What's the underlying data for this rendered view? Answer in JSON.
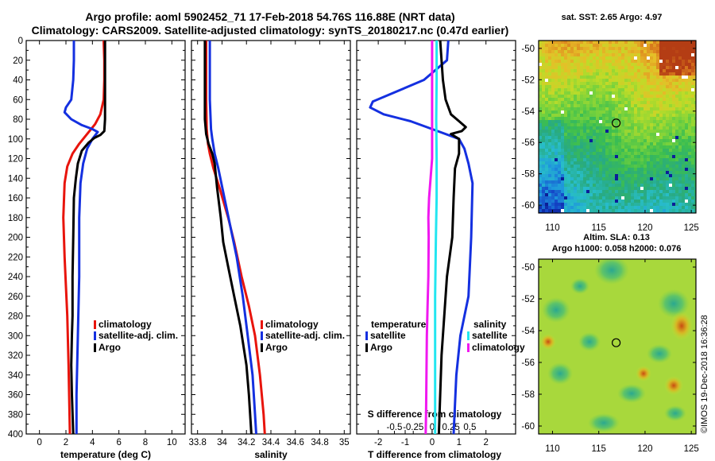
{
  "title_line1": "Argo profile: aoml 5902452_71 17-Feb-2018 54.76S 116.88E (NRT data)",
  "title_line2": "Climatology: CARS2009. Satellite-adjusted climatology: synTS_20180217.nc (0.47d earlier)",
  "sst_title": "sat. SST: 2.65 Argo: 4.97",
  "sla_title1": "Altim. SLA: 0.13",
  "sla_title2": "Argo h1000: 0.058 h2000: 0.076",
  "watermark": "©IMOS 19-Dec-2018 16:36:28",
  "colors": {
    "climatology": "#e8140c",
    "satellite": "#1430e0",
    "argo": "#000000",
    "sat_salinity": "#22e6f0",
    "clim_salinity_diff": "#f018f0"
  },
  "chart_data": [
    {
      "type": "line",
      "id": "temperature",
      "xlabel": "temperature (deg C)",
      "xlim": [
        -1,
        11
      ],
      "xticks": [
        0,
        2,
        4,
        6,
        8,
        10
      ],
      "ylim": [
        0,
        400
      ],
      "yticks": [
        0,
        20,
        40,
        60,
        80,
        100,
        120,
        140,
        160,
        180,
        200,
        220,
        240,
        260,
        280,
        300,
        320,
        340,
        360,
        380,
        400
      ],
      "legend": [
        "climatology",
        "satellite-adj. clim.",
        "Argo"
      ],
      "series": [
        {
          "name": "climatology",
          "color_key": "climatology",
          "points": [
            [
              4.85,
              0
            ],
            [
              4.9,
              20
            ],
            [
              4.9,
              40
            ],
            [
              4.85,
              60
            ],
            [
              4.6,
              75
            ],
            [
              4.2,
              85
            ],
            [
              3.6,
              95
            ],
            [
              3.0,
              105
            ],
            [
              2.5,
              115
            ],
            [
              2.1,
              128
            ],
            [
              1.9,
              145
            ],
            [
              1.8,
              180
            ],
            [
              1.9,
              220
            ],
            [
              2.0,
              250
            ],
            [
              2.1,
              280
            ],
            [
              2.2,
              330
            ],
            [
              2.3,
              400
            ]
          ]
        },
        {
          "name": "satellite-adj. clim.",
          "color_key": "satellite",
          "points": [
            [
              2.6,
              0
            ],
            [
              2.6,
              20
            ],
            [
              2.55,
              40
            ],
            [
              2.4,
              60
            ],
            [
              2.0,
              68
            ],
            [
              1.9,
              73
            ],
            [
              2.4,
              80
            ],
            [
              3.2,
              86
            ],
            [
              4.0,
              90
            ],
            [
              4.4,
              93
            ],
            [
              4.0,
              100
            ],
            [
              3.6,
              110
            ],
            [
              3.3,
              125
            ],
            [
              3.1,
              145
            ],
            [
              3.0,
              180
            ],
            [
              3.0,
              240
            ],
            [
              2.9,
              300
            ],
            [
              2.8,
              360
            ],
            [
              2.8,
              400
            ]
          ]
        },
        {
          "name": "Argo",
          "color_key": "argo",
          "points": [
            [
              4.95,
              0
            ],
            [
              4.95,
              20
            ],
            [
              4.95,
              60
            ],
            [
              4.95,
              80
            ],
            [
              4.9,
              92
            ],
            [
              4.6,
              96
            ],
            [
              4.15,
              99
            ],
            [
              3.7,
              104
            ],
            [
              3.2,
              112
            ],
            [
              2.9,
              125
            ],
            [
              2.75,
              140
            ],
            [
              2.6,
              160
            ],
            [
              2.55,
              200
            ],
            [
              2.5,
              240
            ],
            [
              2.5,
              280
            ],
            [
              2.45,
              300
            ],
            [
              2.4,
              330
            ],
            [
              2.45,
              360
            ],
            [
              2.55,
              400
            ]
          ]
        }
      ]
    },
    {
      "type": "line",
      "id": "salinity",
      "xlabel": "salinity",
      "xlim": [
        33.75,
        35.05
      ],
      "xticks": [
        33.8,
        34,
        34.2,
        34.4,
        34.6,
        34.8,
        35
      ],
      "xticklabels": [
        "33.8",
        "34",
        "34.2",
        "34.4",
        "34.6",
        "34.8",
        "35"
      ],
      "ylim": [
        0,
        400
      ],
      "legend": [
        "climatology",
        "satellite-adj. clim.",
        "Argo"
      ],
      "series": [
        {
          "name": "climatology",
          "color_key": "climatology",
          "points": [
            [
              33.87,
              0
            ],
            [
              33.87,
              60
            ],
            [
              33.875,
              90
            ],
            [
              33.885,
              105
            ],
            [
              33.9,
              115
            ],
            [
              33.93,
              130
            ],
            [
              33.98,
              150
            ],
            [
              34.05,
              180
            ],
            [
              34.1,
              205
            ],
            [
              34.16,
              240
            ],
            [
              34.22,
              270
            ],
            [
              34.27,
              300
            ],
            [
              34.31,
              340
            ],
            [
              34.34,
              380
            ],
            [
              34.35,
              400
            ]
          ]
        },
        {
          "name": "satellite-adj. clim.",
          "color_key": "satellite",
          "points": [
            [
              33.9,
              0
            ],
            [
              33.9,
              60
            ],
            [
              33.91,
              90
            ],
            [
              33.92,
              100
            ],
            [
              33.94,
              115
            ],
            [
              33.97,
              130
            ],
            [
              34.02,
              160
            ],
            [
              34.07,
              190
            ],
            [
              34.12,
              220
            ],
            [
              34.17,
              260
            ],
            [
              34.21,
              300
            ],
            [
              34.25,
              340
            ],
            [
              34.27,
              380
            ],
            [
              34.28,
              400
            ]
          ]
        },
        {
          "name": "Argo",
          "color_key": "argo",
          "points": [
            [
              33.86,
              0
            ],
            [
              33.86,
              60
            ],
            [
              33.86,
              80
            ],
            [
              33.87,
              95
            ],
            [
              33.89,
              105
            ],
            [
              33.92,
              115
            ],
            [
              33.94,
              125
            ],
            [
              33.96,
              150
            ],
            [
              33.99,
              180
            ],
            [
              34.01,
              205
            ],
            [
              34.05,
              230
            ],
            [
              34.1,
              260
            ],
            [
              34.15,
              290
            ],
            [
              34.2,
              330
            ],
            [
              34.22,
              360
            ],
            [
              34.24,
              400
            ]
          ]
        }
      ]
    },
    {
      "type": "line",
      "id": "difference",
      "xlabel": "T difference from climatology",
      "xlim": [
        -2.8,
        3.1
      ],
      "xticks": [
        -2,
        -1,
        0,
        1,
        2
      ],
      "top_xlabel": "S difference from climatology",
      "top_xticks": [
        -0.5,
        -0.25,
        0,
        0.25,
        0.5
      ],
      "top_xticklabels": [
        "-0.5",
        "-0.25",
        "0",
        "0.25",
        "0.5"
      ],
      "ylim": [
        0,
        400
      ],
      "legend_left_title": "temperature",
      "legend_left": [
        "satellite",
        "Argo"
      ],
      "legend_right_title": "salinity",
      "legend_right": [
        "satellite",
        "climatology"
      ],
      "series": [
        {
          "name": "temperature satellite",
          "color_key": "satellite",
          "points": [
            [
              0.6,
              0
            ],
            [
              0.55,
              20
            ],
            [
              -0.3,
              40
            ],
            [
              -1.6,
              55
            ],
            [
              -2.2,
              62
            ],
            [
              -2.3,
              68
            ],
            [
              -1.8,
              75
            ],
            [
              -0.8,
              82
            ],
            [
              -0.2,
              88
            ],
            [
              0.3,
              93
            ],
            [
              1.0,
              100
            ],
            [
              1.2,
              110
            ],
            [
              1.35,
              125
            ],
            [
              1.5,
              145
            ],
            [
              1.45,
              200
            ],
            [
              1.35,
              260
            ],
            [
              1.05,
              300
            ],
            [
              0.9,
              340
            ],
            [
              0.8,
              400
            ]
          ]
        },
        {
          "name": "temperature Argo",
          "color_key": "argo",
          "points": [
            [
              0.3,
              0
            ],
            [
              0.35,
              20
            ],
            [
              0.4,
              40
            ],
            [
              0.5,
              60
            ],
            [
              0.7,
              75
            ],
            [
              1.0,
              82
            ],
            [
              1.25,
              88
            ],
            [
              1.1,
              92
            ],
            [
              0.7,
              95
            ],
            [
              1.0,
              100
            ],
            [
              1.0,
              115
            ],
            [
              0.85,
              130
            ],
            [
              0.8,
              160
            ],
            [
              0.75,
              200
            ],
            [
              0.55,
              240
            ],
            [
              0.45,
              280
            ],
            [
              0.35,
              320
            ],
            [
              0.3,
              360
            ],
            [
              0.25,
              400
            ]
          ]
        },
        {
          "name": "salinity satellite",
          "color_key": "sat_salinity",
          "points": [
            [
              0.06,
              0
            ],
            [
              0.06,
              40
            ],
            [
              0.055,
              80
            ],
            [
              0.06,
              120
            ],
            [
              0.06,
              160
            ],
            [
              0.05,
              200
            ],
            [
              0.04,
              260
            ],
            [
              0.04,
              320
            ],
            [
              0.04,
              360
            ],
            [
              0.04,
              400
            ]
          ]
        },
        {
          "name": "salinity climatology",
          "color_key": "clim_salinity_diff",
          "points": [
            [
              0.0,
              0
            ],
            [
              0.0,
              40
            ],
            [
              0.0,
              80
            ],
            [
              0.0,
              100
            ],
            [
              0.0,
              120
            ],
            [
              -0.02,
              140
            ],
            [
              -0.04,
              160
            ],
            [
              -0.05,
              180
            ],
            [
              -0.045,
              200
            ],
            [
              -0.05,
              240
            ],
            [
              -0.06,
              270
            ],
            [
              -0.07,
              300
            ],
            [
              -0.075,
              340
            ],
            [
              -0.08,
              380
            ],
            [
              -0.085,
              400
            ]
          ]
        }
      ]
    },
    {
      "type": "heatmap",
      "id": "sst_map",
      "title": "sat. SST: 2.65 Argo: 4.97",
      "xlim": [
        108.5,
        125.5
      ],
      "xticks": [
        110,
        115,
        120,
        125
      ],
      "ylim": [
        -60.5,
        -49.5
      ],
      "yticks": [
        -50,
        -52,
        -54,
        -56,
        -58,
        -60
      ],
      "marker": [
        116.88,
        -54.76
      ]
    },
    {
      "type": "heatmap",
      "id": "sla_map",
      "title": "Altim. SLA: 0.13",
      "xlim": [
        108.5,
        125.5
      ],
      "xticks": [
        110,
        115,
        120,
        125
      ],
      "ylim": [
        -60.5,
        -49.5
      ],
      "yticks": [
        -50,
        -52,
        -54,
        -56,
        -58,
        -60
      ],
      "marker": [
        116.88,
        -54.76
      ]
    }
  ]
}
